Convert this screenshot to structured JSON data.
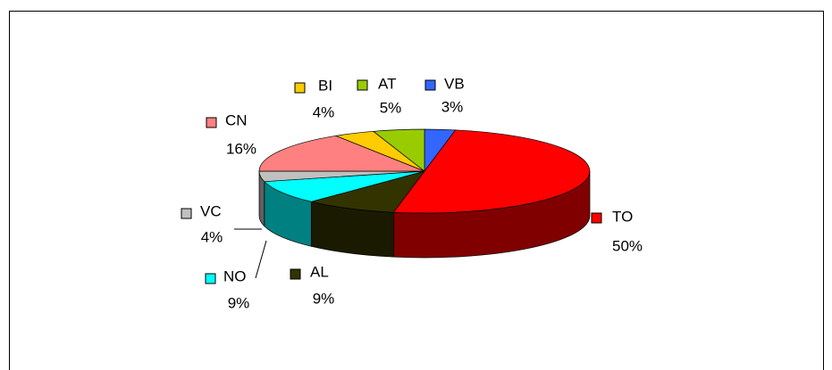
{
  "chart_data": {
    "type": "pie3d",
    "categories": [
      "VB",
      "TO",
      "AL",
      "NO",
      "VC",
      "CN",
      "BI",
      "AT"
    ],
    "values": [
      3,
      50,
      9,
      9,
      4,
      16,
      4,
      5
    ],
    "value_labels": [
      "3%",
      "50%",
      "9%",
      "9%",
      "4%",
      "16%",
      "4%",
      "5%"
    ],
    "colors": [
      "#3366ff",
      "#ff0000",
      "#333300",
      "#00ffff",
      "#c0c0c0",
      "#ff8080",
      "#ffcc00",
      "#99cc00"
    ]
  }
}
